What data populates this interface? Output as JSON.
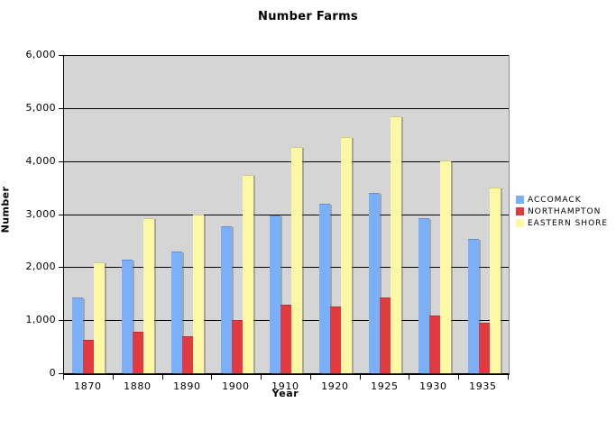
{
  "chart_data": {
    "type": "bar",
    "title": "Number Farms",
    "xlabel": "Year",
    "ylabel": "Number",
    "ylim": [
      0,
      6000
    ],
    "ytick_step": 1000,
    "ytick_labels": [
      "0",
      "1,000",
      "2,000",
      "3,000",
      "4,000",
      "5,000",
      "6,000"
    ],
    "grid": true,
    "legend_position": "right",
    "plot_bg_color": "#d5d5d5",
    "gridline_color": "#000000",
    "categories": [
      "1870",
      "1880",
      "1890",
      "1900",
      "1910",
      "1920",
      "1925",
      "1930",
      "1935"
    ],
    "series": [
      {
        "name": "ACCOMACK",
        "color": "#7ab0f9",
        "values": [
          1430,
          2150,
          2290,
          2770,
          2980,
          3200,
          3400,
          2920,
          2540
        ]
      },
      {
        "name": "NORTHAMPTON",
        "color": "#e03b40",
        "values": [
          630,
          780,
          700,
          1000,
          1300,
          1250,
          1430,
          1090,
          960
        ]
      },
      {
        "name": "EASTERN SHORE",
        "color": "#fdf8a3",
        "values": [
          2090,
          2930,
          3000,
          3740,
          4270,
          4450,
          4840,
          4010,
          3500
        ]
      }
    ]
  }
}
